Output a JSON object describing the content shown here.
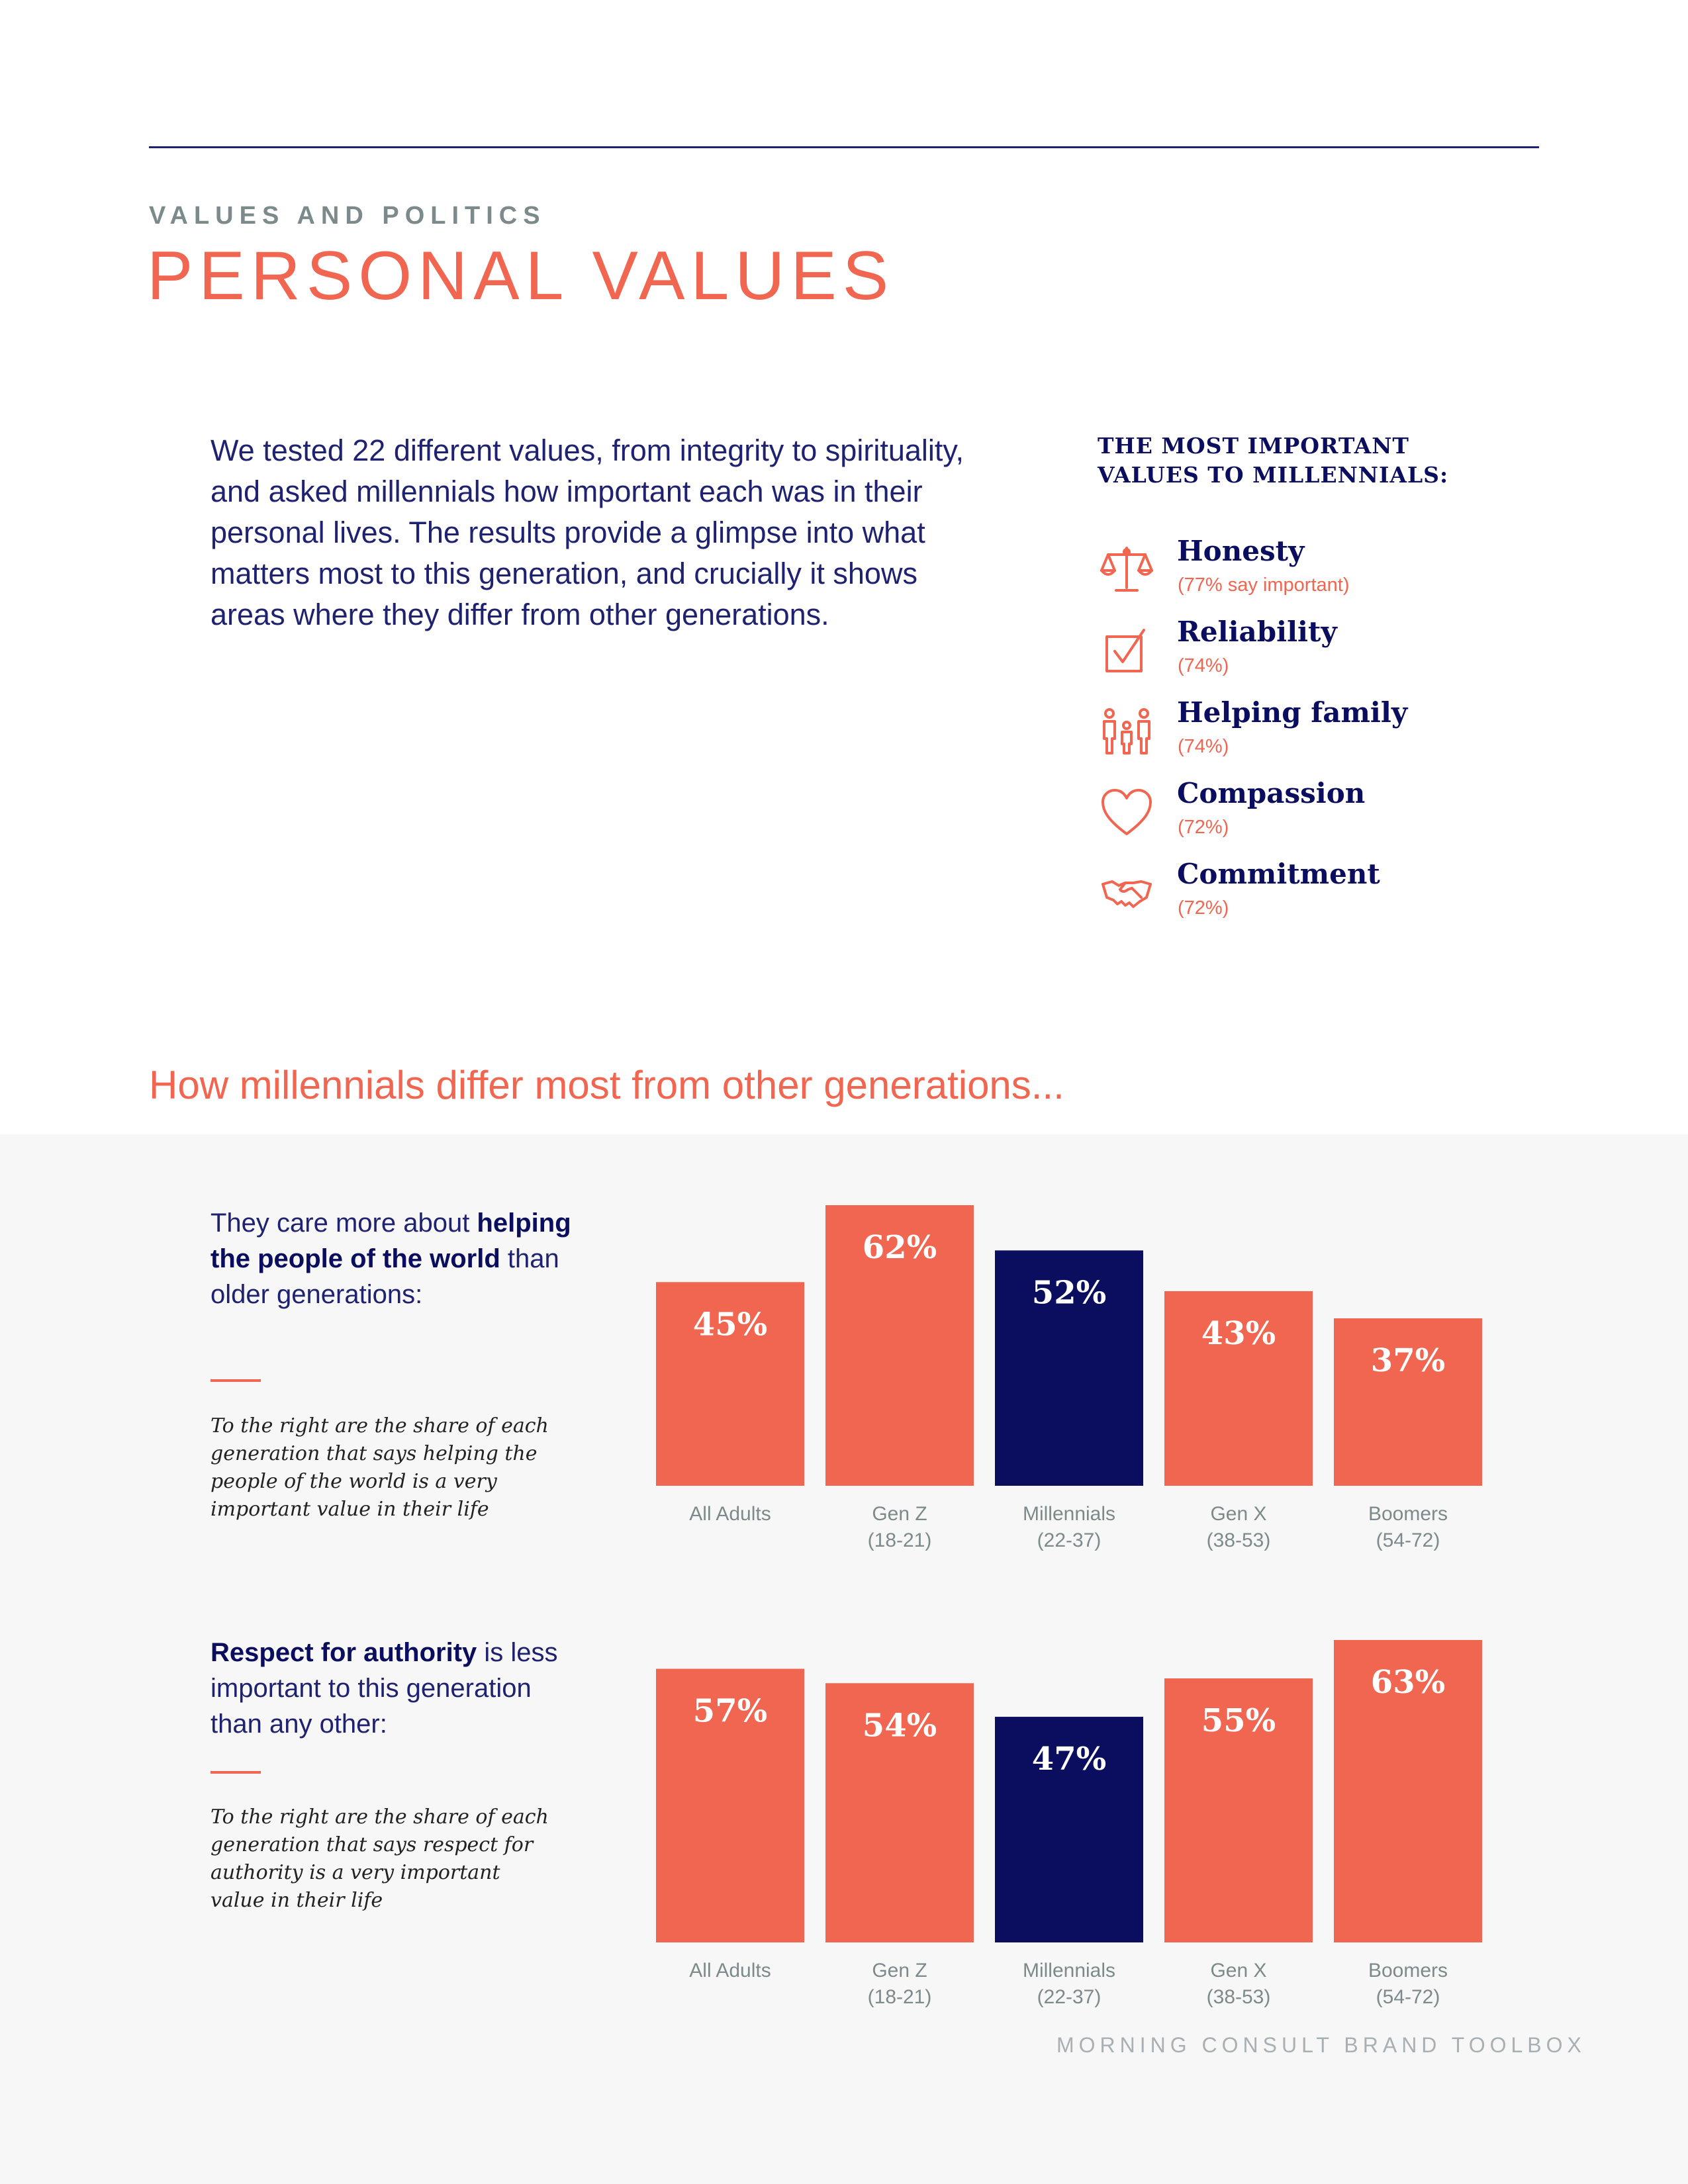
{
  "header": {
    "section_label": "VALUES AND POLITICS",
    "title": "PERSONAL VALUES"
  },
  "intro": "We tested 22 different values, from integrity to spirituality, and asked millennials how important each was in their personal lives. The results provide a glimpse into what matters most to this generation, and crucially it shows areas where they differ from other generations.",
  "values_panel": {
    "heading_line1": "THE MOST IMPORTANT",
    "heading_line2": "VALUES TO MILLENNIALS:",
    "items": [
      {
        "name": "Honesty",
        "pct": "(77% say important)",
        "icon": "scales-icon"
      },
      {
        "name": "Reliability",
        "pct": "(74%)",
        "icon": "checkbox-icon"
      },
      {
        "name": "Helping family",
        "pct": "(74%)",
        "icon": "family-icon"
      },
      {
        "name": "Compassion",
        "pct": "(72%)",
        "icon": "heart-icon"
      },
      {
        "name": "Commitment",
        "pct": "(72%)",
        "icon": "handshake-icon"
      }
    ]
  },
  "diff_heading": "How millennials differ most from other generations...",
  "sections": [
    {
      "lead_pre": "They care more about ",
      "lead_bold": "helping the people of the world",
      "lead_post": " than older generations:",
      "note": "To the right are the share of each generation that says helping the people of the world is a very important value in their life"
    },
    {
      "lead_pre": "",
      "lead_bold": "Respect for authority",
      "lead_post": " is less important to this generation than any other:",
      "note": "To the right are the share of each generation that says respect for authority is a very important value in their life"
    }
  ],
  "colors": {
    "accent": "#f06651",
    "highlight": "#0b0e5e",
    "axis_label": "#7d8a8b"
  },
  "chart_data": [
    {
      "type": "bar",
      "categories": [
        [
          "All Adults"
        ],
        [
          "Gen Z",
          "(18-21)"
        ],
        [
          "Millennials",
          "(22-37)"
        ],
        [
          "Gen X",
          "(38-53)"
        ],
        [
          "Boomers",
          "(54-72)"
        ]
      ],
      "values": [
        45,
        62,
        52,
        43,
        37
      ],
      "labels": [
        "45%",
        "62%",
        "52%",
        "43%",
        "37%"
      ],
      "highlight_index": 2,
      "ylim": [
        0,
        62
      ],
      "grid": false
    },
    {
      "type": "bar",
      "categories": [
        [
          "All Adults"
        ],
        [
          "Gen Z",
          "(18-21)"
        ],
        [
          "Millennials",
          "(22-37)"
        ],
        [
          "Gen X",
          "(38-53)"
        ],
        [
          "Boomers",
          "(54-72)"
        ]
      ],
      "values": [
        57,
        54,
        47,
        55,
        63
      ],
      "labels": [
        "57%",
        "54%",
        "47%",
        "55%",
        "63%"
      ],
      "highlight_index": 2,
      "ylim": [
        0,
        63
      ],
      "grid": false
    }
  ],
  "footer": "MORNING CONSULT BRAND TOOLBOX"
}
